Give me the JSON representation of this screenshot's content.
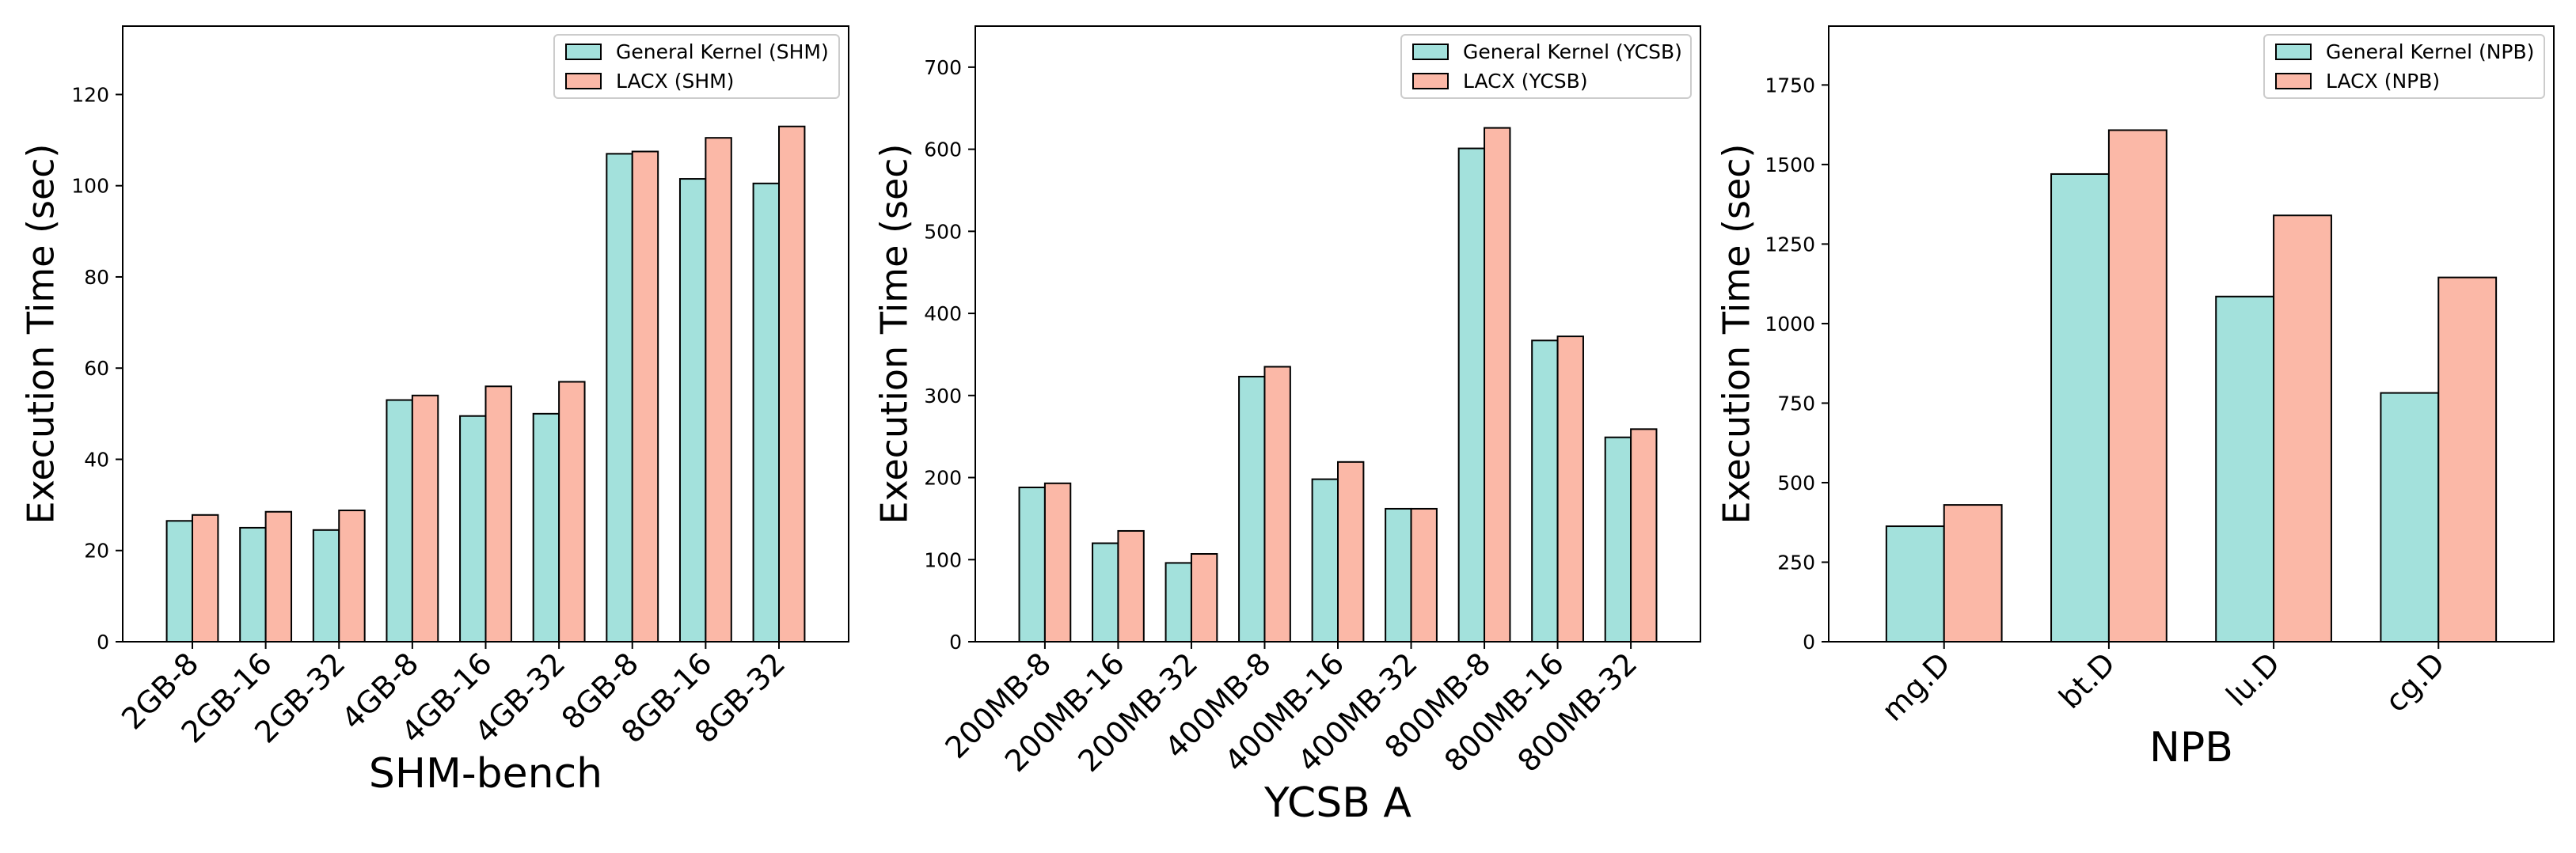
{
  "colors": {
    "general": "#a3e1dc",
    "lacx": "#fbb8a7",
    "edge": "#000000"
  },
  "chart_data": [
    {
      "type": "bar",
      "title": "",
      "xlabel": "SHM-bench",
      "ylabel": "Execution Time (sec)",
      "ylim": [
        0,
        135
      ],
      "yticks": [
        0,
        20,
        40,
        60,
        80,
        100,
        120
      ],
      "grid": false,
      "legend_position": "top-right",
      "categories": [
        "2GB-8",
        "2GB-16",
        "2GB-32",
        "4GB-8",
        "4GB-16",
        "4GB-32",
        "8GB-8",
        "8GB-16",
        "8GB-32"
      ],
      "series": [
        {
          "name": "General Kernel (SHM)",
          "color_key": "general",
          "values": [
            26.5,
            25,
            24.5,
            53,
            49.5,
            50,
            107,
            101.5,
            100.5
          ]
        },
        {
          "name": "LACX (SHM)",
          "color_key": "lacx",
          "values": [
            27.8,
            28.5,
            28.8,
            54,
            56,
            57,
            107.5,
            110.5,
            113
          ]
        }
      ]
    },
    {
      "type": "bar",
      "title": "",
      "xlabel": "YCSB A",
      "ylabel": "Execution Time (sec)",
      "ylim": [
        0,
        750
      ],
      "yticks": [
        0,
        100,
        200,
        300,
        400,
        500,
        600,
        700
      ],
      "grid": false,
      "legend_position": "top-right",
      "categories": [
        "200MB-8",
        "200MB-16",
        "200MB-32",
        "400MB-8",
        "400MB-16",
        "400MB-32",
        "800MB-8",
        "800MB-16",
        "800MB-32"
      ],
      "series": [
        {
          "name": "General Kernel (YCSB)",
          "color_key": "general",
          "values": [
            188,
            120,
            96,
            323,
            198,
            162,
            601,
            367,
            249
          ]
        },
        {
          "name": "LACX (YCSB)",
          "color_key": "lacx",
          "values": [
            193,
            135,
            107,
            335,
            219,
            162,
            626,
            372,
            259
          ]
        }
      ]
    },
    {
      "type": "bar",
      "title": "",
      "xlabel": "NPB",
      "ylabel": "Execution Time (sec)",
      "ylim": [
        0,
        1935
      ],
      "yticks": [
        0,
        250,
        500,
        750,
        1000,
        1250,
        1500,
        1750
      ],
      "grid": false,
      "legend_position": "top-right",
      "categories": [
        "mg.D",
        "bt.D",
        "lu.D",
        "cg.D"
      ],
      "series": [
        {
          "name": "General Kernel (NPB)",
          "color_key": "general",
          "values": [
            363,
            1470,
            1085,
            782
          ]
        },
        {
          "name": "LACX (NPB)",
          "color_key": "lacx",
          "values": [
            430,
            1608,
            1340,
            1145
          ]
        }
      ]
    }
  ]
}
